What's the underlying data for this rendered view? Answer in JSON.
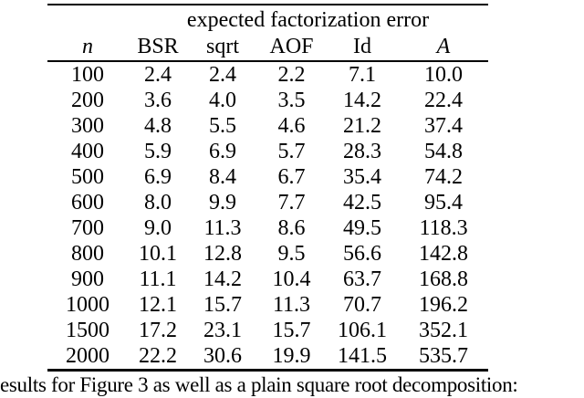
{
  "page": {
    "background_color": "#ffffff",
    "text_color": "#000000",
    "rule_color": "#000000"
  },
  "table": {
    "group_header": "expected factorization error",
    "columns": [
      "n",
      "BSR",
      "sqrt",
      "AOF",
      "Id",
      "A"
    ],
    "rows": [
      [
        "100",
        "2.4",
        "2.4",
        "2.2",
        "7.1",
        "10.0"
      ],
      [
        "200",
        "3.6",
        "4.0",
        "3.5",
        "14.2",
        "22.4"
      ],
      [
        "300",
        "4.8",
        "5.5",
        "4.6",
        "21.2",
        "37.4"
      ],
      [
        "400",
        "5.9",
        "6.9",
        "5.7",
        "28.3",
        "54.8"
      ],
      [
        "500",
        "6.9",
        "8.4",
        "6.7",
        "35.4",
        "74.2"
      ],
      [
        "600",
        "8.0",
        "9.9",
        "7.7",
        "42.5",
        "95.4"
      ],
      [
        "700",
        "9.0",
        "11.3",
        "8.6",
        "49.5",
        "118.3"
      ],
      [
        "800",
        "10.1",
        "12.8",
        "9.5",
        "56.6",
        "142.8"
      ],
      [
        "900",
        "11.1",
        "14.2",
        "10.4",
        "63.7",
        "168.8"
      ],
      [
        "1000",
        "12.1",
        "15.7",
        "11.3",
        "70.7",
        "196.2"
      ],
      [
        "1500",
        "17.2",
        "23.1",
        "15.7",
        "106.1",
        "352.1"
      ],
      [
        "2000",
        "22.2",
        "30.6",
        "19.9",
        "141.5",
        "535.7"
      ]
    ]
  },
  "caption": {
    "text": "esults for Figure 3 as well as a plain square root decomposition:"
  }
}
